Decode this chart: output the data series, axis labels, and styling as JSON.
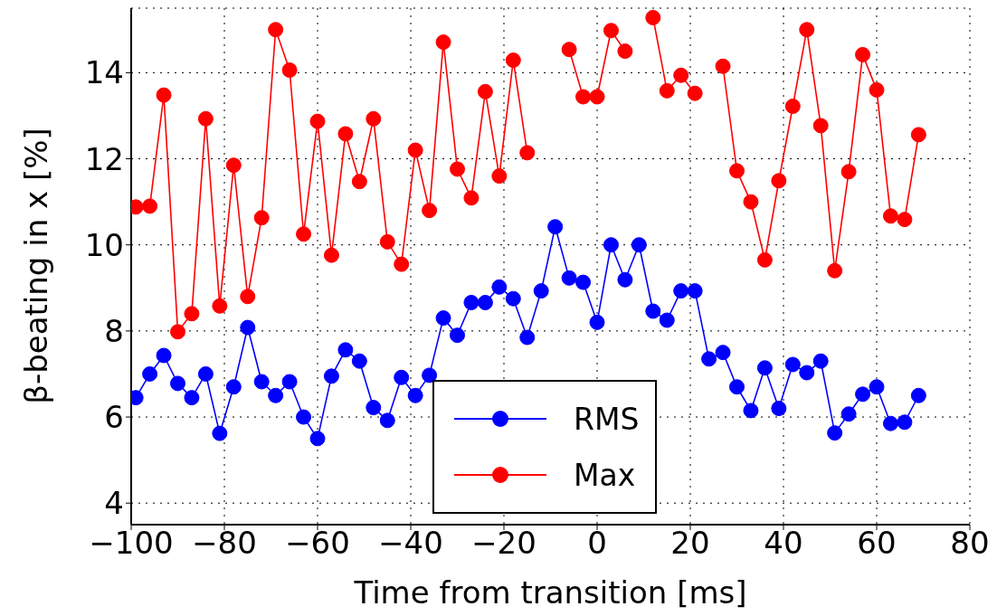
{
  "chart_data": {
    "type": "line",
    "xlabel": "Time from transition [ms]",
    "ylabel": "β-beating in x [%]",
    "x": [
      -99,
      -96,
      -93,
      -90,
      -87,
      -84,
      -81,
      -78,
      -75,
      -72,
      -69,
      -66,
      -63,
      -60,
      -57,
      -54,
      -51,
      -48,
      -45,
      -42,
      -39,
      -36,
      -33,
      -30,
      -27,
      -24,
      -21,
      -18,
      -15,
      -12,
      -9,
      -6,
      -3,
      0,
      3,
      6,
      9,
      12,
      15,
      18,
      21,
      24,
      27,
      30,
      33,
      36,
      39,
      42,
      45,
      48,
      51,
      54,
      57,
      60,
      63,
      66,
      69
    ],
    "series": [
      {
        "name": "RMS",
        "color": "#0000ff",
        "values": [
          6.45,
          7.0,
          7.43,
          6.78,
          6.45,
          7.0,
          5.62,
          6.7,
          8.08,
          6.82,
          6.5,
          6.82,
          6.0,
          5.5,
          6.95,
          7.56,
          7.3,
          6.22,
          5.92,
          6.92,
          6.5,
          6.97,
          8.3,
          7.9,
          8.66,
          8.66,
          9.02,
          8.75,
          7.85,
          8.93,
          10.42,
          9.23,
          9.13,
          8.2,
          10.0,
          9.19,
          10.0,
          8.46,
          8.25,
          8.93,
          8.93,
          7.35,
          7.5,
          6.7,
          6.15,
          7.14,
          6.2,
          7.22,
          7.03,
          7.3,
          5.63,
          6.07,
          6.53,
          6.7,
          5.85,
          5.88,
          6.5
        ]
      },
      {
        "name": "Max",
        "color": "#ff0000",
        "values": [
          10.88,
          10.9,
          13.48,
          7.98,
          8.4,
          12.93,
          8.58,
          11.85,
          8.8,
          10.63,
          15.0,
          14.06,
          10.25,
          12.87,
          9.76,
          12.58,
          11.47,
          12.93,
          10.07,
          9.55,
          12.2,
          10.8,
          14.71,
          11.76,
          11.09,
          13.56,
          11.6,
          14.29,
          12.14,
          null,
          null,
          14.54,
          13.44,
          13.44,
          14.98,
          14.5,
          null,
          15.28,
          13.58,
          13.94,
          13.52,
          null,
          14.15,
          11.72,
          11.0,
          9.65,
          11.49,
          13.22,
          15.0,
          12.77,
          9.4,
          11.7,
          14.42,
          13.6,
          10.67,
          10.59,
          12.56
        ]
      }
    ],
    "xlim": [
      -100,
      80
    ],
    "xticks": [
      -100,
      -80,
      -60,
      -40,
      -20,
      0,
      20,
      40,
      60,
      80
    ],
    "ylim": [
      3.5,
      15.5
    ],
    "yticks": [
      4,
      6,
      8,
      10,
      12,
      14
    ],
    "grid": true,
    "legend": "bottom",
    "marker": "circle",
    "line_style": "solid"
  }
}
